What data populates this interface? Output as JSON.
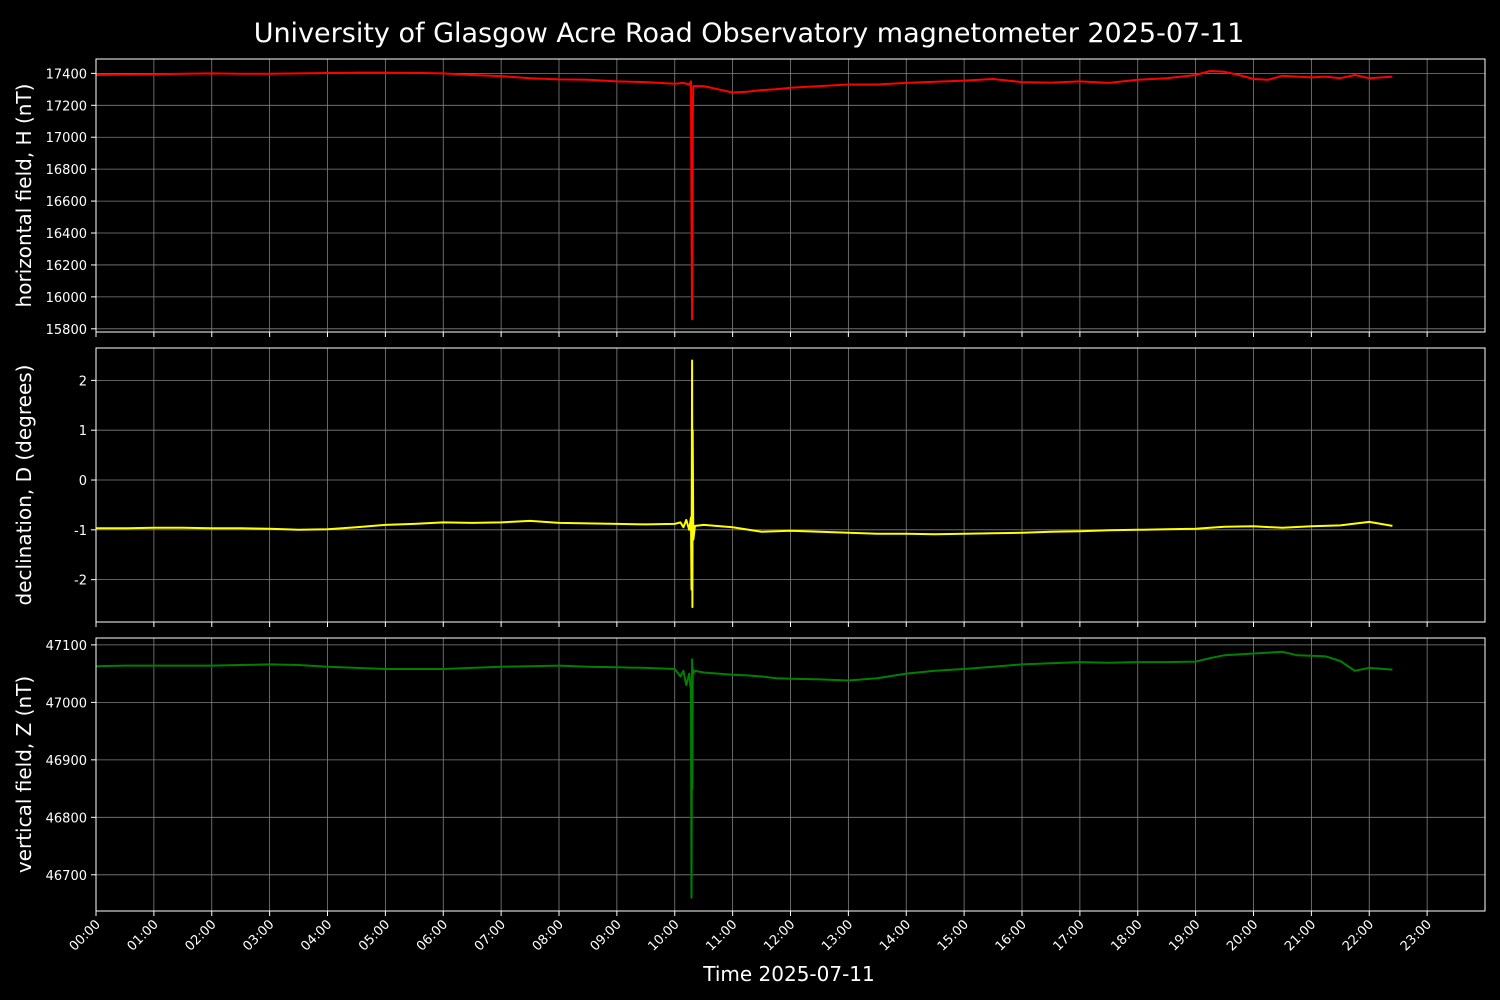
{
  "title": "University of Glasgow Acre Road Observatory magnetometer 2025-07-11",
  "xlabel": "Time 2025-07-11",
  "colors": {
    "background": "#000000",
    "grid": "#808080",
    "axes": "#ffffff"
  },
  "chart_data": [
    {
      "type": "line",
      "ylabel": "horizontal field, H (nT)",
      "ylim": [
        15780,
        17490
      ],
      "yticks": [
        15800,
        16000,
        16200,
        16400,
        16600,
        16800,
        17000,
        17200,
        17400
      ],
      "xlim": [
        0,
        24
      ],
      "grid": true,
      "series": [
        {
          "color": "#ff0000",
          "x": [
            0,
            0.5,
            1,
            1.5,
            2,
            2.5,
            3,
            3.5,
            4,
            4.5,
            5,
            5.5,
            6,
            6.5,
            7,
            7.5,
            8,
            8.5,
            9,
            9.5,
            10,
            10.15,
            10.25,
            10.28,
            10.29,
            10.3,
            10.31,
            10.32,
            10.35,
            10.5,
            10.75,
            11,
            11.25,
            11.5,
            11.75,
            12,
            12.5,
            13,
            13.5,
            14,
            14.5,
            15,
            15.5,
            16,
            16.5,
            17,
            17.5,
            18,
            18.5,
            19,
            19.25,
            19.5,
            19.75,
            20,
            20.25,
            20.5,
            20.75,
            21,
            21.25,
            21.5,
            21.75,
            22,
            22.4
          ],
          "y": [
            17390,
            17393,
            17395,
            17397,
            17400,
            17398,
            17398,
            17400,
            17402,
            17405,
            17405,
            17403,
            17400,
            17390,
            17383,
            17370,
            17362,
            17360,
            17350,
            17345,
            17335,
            17340,
            17330,
            17350,
            16500,
            15860,
            17100,
            17320,
            17320,
            17320,
            17300,
            17280,
            17285,
            17295,
            17300,
            17310,
            17320,
            17330,
            17330,
            17340,
            17348,
            17355,
            17365,
            17345,
            17342,
            17350,
            17340,
            17360,
            17370,
            17390,
            17415,
            17410,
            17390,
            17365,
            17360,
            17385,
            17380,
            17375,
            17380,
            17370,
            17390,
            17370,
            17380
          ]
        }
      ]
    },
    {
      "type": "line",
      "ylabel": "declination, D (degrees)",
      "ylim": [
        -2.85,
        2.65
      ],
      "yticks": [
        -2,
        -1,
        0,
        1,
        2
      ],
      "xlim": [
        0,
        24
      ],
      "grid": true,
      "series": [
        {
          "color": "#ffff00",
          "x": [
            0,
            0.5,
            1,
            1.5,
            2,
            2.5,
            3,
            3.5,
            4,
            4.5,
            5,
            5.5,
            6,
            6.5,
            7,
            7.5,
            8,
            8.5,
            9,
            9.5,
            10,
            10.1,
            10.15,
            10.2,
            10.25,
            10.28,
            10.29,
            10.3,
            10.305,
            10.31,
            10.32,
            10.35,
            10.5,
            11,
            11.5,
            12,
            12.5,
            13,
            13.5,
            14,
            14.5,
            15,
            15.5,
            16,
            16.5,
            17,
            17.5,
            18,
            18.5,
            19,
            19.5,
            20,
            20.5,
            21,
            21.5,
            22,
            22.4
          ],
          "y": [
            -0.97,
            -0.97,
            -0.96,
            -0.96,
            -0.97,
            -0.97,
            -0.98,
            -1.0,
            -0.99,
            -0.95,
            -0.9,
            -0.88,
            -0.85,
            -0.86,
            -0.85,
            -0.82,
            -0.86,
            -0.87,
            -0.88,
            -0.89,
            -0.88,
            -0.85,
            -0.95,
            -0.8,
            -1.0,
            -0.75,
            -2.2,
            2.4,
            -2.55,
            1.0,
            -1.2,
            -0.92,
            -0.9,
            -0.95,
            -1.04,
            -1.02,
            -1.04,
            -1.06,
            -1.08,
            -1.08,
            -1.09,
            -1.08,
            -1.07,
            -1.06,
            -1.04,
            -1.03,
            -1.01,
            -1.0,
            -0.99,
            -0.98,
            -0.94,
            -0.93,
            -0.96,
            -0.93,
            -0.91,
            -0.84,
            -0.92
          ]
        }
      ]
    },
    {
      "type": "line",
      "ylabel": "vertical field, Z (nT)",
      "ylim": [
        46637,
        47112
      ],
      "yticks": [
        46700,
        46800,
        46900,
        47000,
        47100
      ],
      "xlim": [
        0,
        24
      ],
      "grid": true,
      "xticks": [
        "00:00",
        "01:00",
        "02:00",
        "03:00",
        "04:00",
        "05:00",
        "06:00",
        "07:00",
        "08:00",
        "09:00",
        "10:00",
        "11:00",
        "12:00",
        "13:00",
        "14:00",
        "15:00",
        "16:00",
        "17:00",
        "18:00",
        "19:00",
        "20:00",
        "21:00",
        "22:00",
        "23:00"
      ],
      "series": [
        {
          "color": "#008000",
          "x": [
            0,
            0.5,
            1,
            1.5,
            2,
            2.5,
            3,
            3.5,
            4,
            4.5,
            5,
            5.5,
            6,
            6.5,
            7,
            7.5,
            8,
            8.5,
            9,
            9.5,
            10,
            10.1,
            10.15,
            10.2,
            10.25,
            10.28,
            10.29,
            10.3,
            10.305,
            10.31,
            10.32,
            10.35,
            10.5,
            11,
            11.25,
            11.5,
            11.75,
            12,
            12.5,
            13,
            13.5,
            14,
            14.5,
            15,
            15.5,
            16,
            16.5,
            17,
            17.5,
            18,
            18.5,
            19,
            19.25,
            19.5,
            20,
            20.5,
            20.75,
            21,
            21.25,
            21.5,
            21.75,
            22,
            22.4
          ],
          "y": [
            47063,
            47064,
            47064,
            47064,
            47064,
            47065,
            47066,
            47065,
            47062,
            47060,
            47058,
            47058,
            47058,
            47060,
            47062,
            47063,
            47064,
            47062,
            47061,
            47060,
            47058,
            47045,
            47055,
            47030,
            47050,
            47020,
            46660,
            47075,
            46850,
            47060,
            47050,
            47055,
            47052,
            47048,
            47047,
            47045,
            47042,
            47041,
            47040,
            47038,
            47042,
            47050,
            47055,
            47058,
            47062,
            47066,
            47068,
            47070,
            47069,
            47070,
            47070,
            47071,
            47077,
            47082,
            47085,
            47088,
            47082,
            47081,
            47080,
            47072,
            47055,
            47060,
            47057
          ]
        }
      ]
    }
  ]
}
